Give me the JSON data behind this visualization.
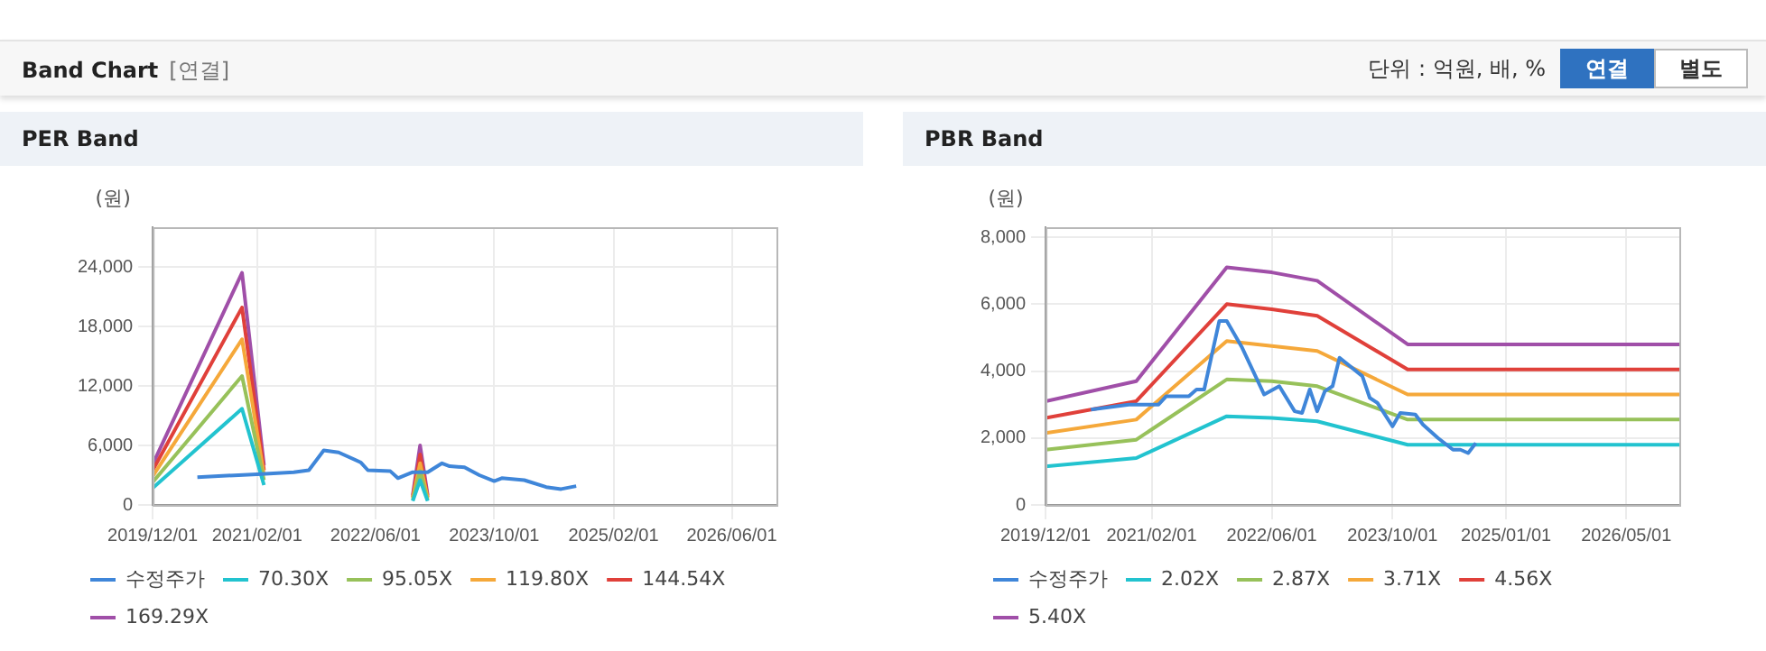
{
  "chart_data": [
    {
      "type": "other",
      "title": "Band Chart",
      "annotations": [
        "[연결]",
        "단위 : 억원, 배, %",
        "연결",
        "별도"
      ]
    },
    {
      "type": "line",
      "title": "PER Band",
      "ylabel": "(원)",
      "xlim": [
        "2019-12-01",
        "2026-12-01"
      ],
      "ylim": [
        0,
        28000
      ],
      "xticks": [
        {
          "value": "2019-12-01",
          "label": "2019/12/01"
        },
        {
          "value": "2021-02-01",
          "label": "2021/02/01"
        },
        {
          "value": "2022-06-01",
          "label": "2022/06/01"
        },
        {
          "value": "2023-10-01",
          "label": "2023/10/01"
        },
        {
          "value": "2025-02-01",
          "label": "2025/02/01"
        },
        {
          "value": "2026-06-01",
          "label": "2026/06/01"
        }
      ],
      "yticks": [
        0,
        {
          "value": 6000,
          "label": "6,000"
        },
        {
          "value": 12000,
          "label": "12,000"
        },
        {
          "value": 18000,
          "label": "18,000"
        },
        {
          "value": 24000,
          "label": "24,000"
        }
      ],
      "grid": true,
      "legend": "bottom",
      "marker": "none",
      "line_style": "solid",
      "series": [
        {
          "name": "수정주가",
          "color": "#3f86d9",
          "x": [
            "2020-06",
            "2021-02",
            "2021-07",
            "2021-09",
            "2021-11",
            "2022-01",
            "2022-04",
            "2022-05",
            "2022-08",
            "2022-09",
            "2022-11",
            "2023-01",
            "2023-03",
            "2023-04",
            "2023-06",
            "2023-08",
            "2023-10",
            "2023-11",
            "2024-02",
            "2024-05",
            "2024-07",
            "2024-09"
          ],
          "values": [
            2800,
            3100,
            3300,
            3500,
            5500,
            5300,
            4300,
            3500,
            3400,
            2700,
            3300,
            3300,
            4200,
            3900,
            3800,
            3000,
            2400,
            2700,
            2500,
            1800,
            1600,
            1900
          ]
        },
        {
          "name": "70.30X",
          "color": "#22c3cf",
          "x": [
            "2019-12",
            "2020-12",
            "2021-03",
            "2022-01",
            "2022-11",
            "2022-12",
            "2023-01"
          ],
          "values": [
            1700,
            9700,
            2000,
            null,
            400,
            2500,
            400
          ]
        },
        {
          "name": "95.05X",
          "color": "#97c15a",
          "x": [
            "2019-12",
            "2020-12",
            "2021-03",
            "2022-01",
            "2022-11",
            "2022-12",
            "2023-01"
          ],
          "values": [
            2300,
            13000,
            2500,
            null,
            500,
            3400,
            500
          ]
        },
        {
          "name": "119.80X",
          "color": "#f5a83a",
          "x": [
            "2019-12",
            "2020-12",
            "2021-03",
            "2022-01",
            "2022-11",
            "2022-12",
            "2023-01"
          ],
          "values": [
            2900,
            16700,
            3000,
            null,
            700,
            4200,
            700
          ]
        },
        {
          "name": "144.54X",
          "color": "#e0403a",
          "x": [
            "2019-12",
            "2020-12",
            "2021-03",
            "2022-01",
            "2022-11",
            "2022-12",
            "2023-01"
          ],
          "values": [
            3500,
            19900,
            3500,
            null,
            800,
            5100,
            800
          ]
        },
        {
          "name": "169.29X",
          "color": "#a04fa8",
          "x": [
            "2019-12",
            "2020-12",
            "2021-03",
            "2022-01",
            "2022-11",
            "2022-12",
            "2023-01"
          ],
          "values": [
            4100,
            23400,
            4000,
            null,
            1000,
            6000,
            1000
          ]
        }
      ]
    },
    {
      "type": "line",
      "title": "PBR Band",
      "ylabel": "(원)",
      "xlim": [
        "2019-12-01",
        "2026-12-01"
      ],
      "ylim": [
        0,
        8300
      ],
      "xticks": [
        {
          "value": "2019-12-01",
          "label": "2019/12/01"
        },
        {
          "value": "2021-02-01",
          "label": "2021/02/01"
        },
        {
          "value": "2022-06-01",
          "label": "2022/06/01"
        },
        {
          "value": "2023-10-01",
          "label": "2023/10/01"
        },
        {
          "value": "2025-01-01",
          "label": "2025/01/01"
        },
        {
          "value": "2026-05-01",
          "label": "2026/05/01"
        }
      ],
      "yticks": [
        0,
        {
          "value": 2000,
          "label": "2,000"
        },
        {
          "value": 4000,
          "label": "4,000"
        },
        {
          "value": 6000,
          "label": "6,000"
        },
        {
          "value": 8000,
          "label": "8,000"
        }
      ],
      "grid": true,
      "legend": "bottom",
      "marker": "none",
      "line_style": "solid",
      "series": [
        {
          "name": "수정주가",
          "color": "#3f86d9",
          "x": [
            "2020-06",
            "2020-11",
            "2021-03",
            "2021-04",
            "2021-07",
            "2021-08",
            "2021-09",
            "2021-11",
            "2021-12",
            "2022-02",
            "2022-05",
            "2022-07",
            "2022-09",
            "2022-10",
            "2022-11",
            "2022-12",
            "2023-01",
            "2023-02",
            "2023-03",
            "2023-06",
            "2023-07",
            "2023-08",
            "2023-10",
            "2023-11",
            "2024-01",
            "2024-02",
            "2024-04",
            "2024-06",
            "2024-07",
            "2024-08",
            "2024-09"
          ],
          "values": [
            2850,
            3000,
            3000,
            3250,
            3250,
            3450,
            3450,
            5500,
            5500,
            4700,
            3300,
            3550,
            2800,
            2750,
            3450,
            2800,
            3400,
            3550,
            4400,
            3850,
            3200,
            3050,
            2350,
            2750,
            2700,
            2400,
            2000,
            1650,
            1650,
            1550,
            1850
          ]
        },
        {
          "name": "2.02X",
          "color": "#22c3cf",
          "x": [
            "2019-12",
            "2020-12",
            "2021-12",
            "2022-06",
            "2022-12",
            "2023-12",
            "2026-12"
          ],
          "values": [
            1150,
            1400,
            2650,
            2600,
            2500,
            1800,
            1800
          ]
        },
        {
          "name": "2.87X",
          "color": "#97c15a",
          "x": [
            "2019-12",
            "2020-12",
            "2021-12",
            "2022-06",
            "2022-12",
            "2023-12",
            "2026-12"
          ],
          "values": [
            1650,
            1950,
            3750,
            3700,
            3550,
            2550,
            2550
          ]
        },
        {
          "name": "3.71X",
          "color": "#f5a83a",
          "x": [
            "2019-12",
            "2020-12",
            "2021-12",
            "2022-06",
            "2022-12",
            "2023-12",
            "2026-12"
          ],
          "values": [
            2150,
            2550,
            4900,
            4750,
            4600,
            3300,
            3300
          ]
        },
        {
          "name": "4.56X",
          "color": "#e0403a",
          "x": [
            "2019-12",
            "2020-12",
            "2021-12",
            "2022-06",
            "2022-12",
            "2023-12",
            "2026-12"
          ],
          "values": [
            2600,
            3100,
            6000,
            5850,
            5650,
            4050,
            4050
          ]
        },
        {
          "name": "5.40X",
          "color": "#a04fa8",
          "x": [
            "2019-12",
            "2020-12",
            "2021-12",
            "2022-06",
            "2022-12",
            "2023-12",
            "2026-12"
          ],
          "values": [
            3100,
            3700,
            7100,
            6950,
            6700,
            4800,
            4800
          ]
        }
      ]
    }
  ]
}
